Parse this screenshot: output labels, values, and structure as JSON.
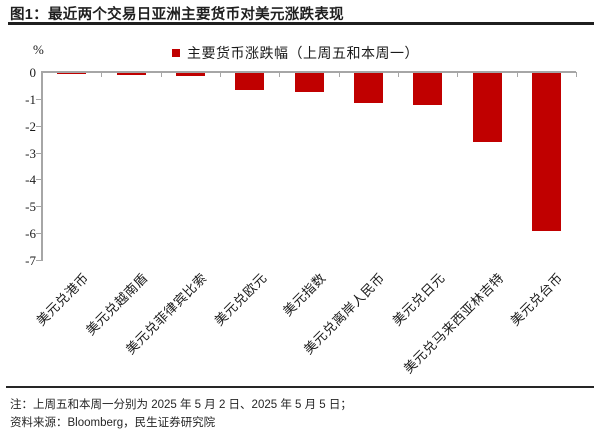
{
  "figure": {
    "title": "图1：最近两个交易日亚洲主要货币对美元涨跌表现"
  },
  "chart_data": {
    "type": "bar",
    "legend": "主要货币涨跌幅（上周五和本周一）",
    "unit_label": "%",
    "categories": [
      "美元兑港币",
      "美元兑越南盾",
      "美元兑菲律宾比索",
      "美元兑欧元",
      "美元指数",
      "美元兑离岸人民币",
      "美元兑日元",
      "美元兑马来西亚林吉特",
      "美元兑台币"
    ],
    "values": [
      -0.08,
      -0.12,
      -0.15,
      -0.67,
      -0.75,
      -1.17,
      -1.23,
      -2.59,
      -5.92
    ],
    "ylim": [
      -7,
      0
    ],
    "yticks": [
      0,
      -1,
      -2,
      -3,
      -4,
      -5,
      -6,
      -7
    ],
    "bar_color": "#c00000",
    "axis_color": "#a6a6a6",
    "legend_position": "top",
    "grid": "off"
  },
  "footer": {
    "note": "注：上周五和本周一分别为 2025 年 5 月 2 日、2025 年 5 月 5 日；",
    "source": "资料来源：Bloomberg，民生证券研究院"
  }
}
